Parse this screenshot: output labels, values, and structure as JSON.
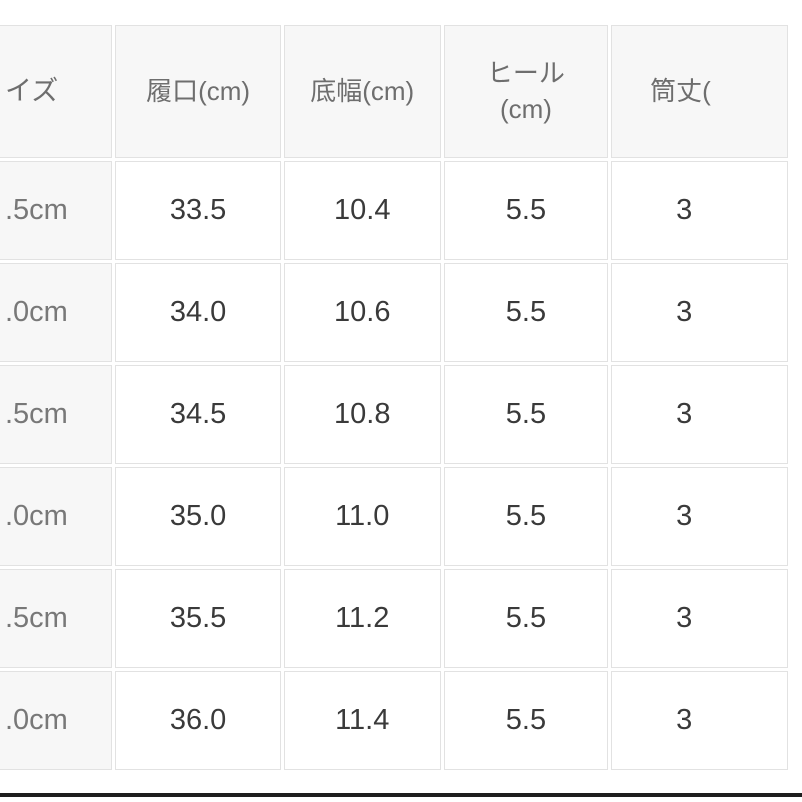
{
  "colors": {
    "page_background": "#ffffff",
    "header_background": "#f7f7f7",
    "size_column_background": "#f7f7f7",
    "cell_background": "#ffffff",
    "grid_border": "#e2e2e2",
    "header_text": "#6e6e6e",
    "size_column_text": "#787878",
    "data_text": "#3a3a3a",
    "bottom_divider": "#1e1e1e"
  },
  "size_chart": {
    "headers": {
      "size": "イズ",
      "opening": "履口(cm)",
      "sole_width": "底幅(cm)",
      "heel": "ヒール\n(cm)",
      "shaft": "筒丈("
    },
    "rows": [
      {
        "size": ".5cm",
        "opening": "33.5",
        "sole_width": "10.4",
        "heel": "5.5",
        "shaft": "3"
      },
      {
        "size": ".0cm",
        "opening": "34.0",
        "sole_width": "10.6",
        "heel": "5.5",
        "shaft": "3"
      },
      {
        "size": ".5cm",
        "opening": "34.5",
        "sole_width": "10.8",
        "heel": "5.5",
        "shaft": "3"
      },
      {
        "size": ".0cm",
        "opening": "35.0",
        "sole_width": "11.0",
        "heel": "5.5",
        "shaft": "3"
      },
      {
        "size": ".5cm",
        "opening": "35.5",
        "sole_width": "11.2",
        "heel": "5.5",
        "shaft": "3"
      },
      {
        "size": ".0cm",
        "opening": "36.0",
        "sole_width": "11.4",
        "heel": "5.5",
        "shaft": "3"
      }
    ]
  }
}
